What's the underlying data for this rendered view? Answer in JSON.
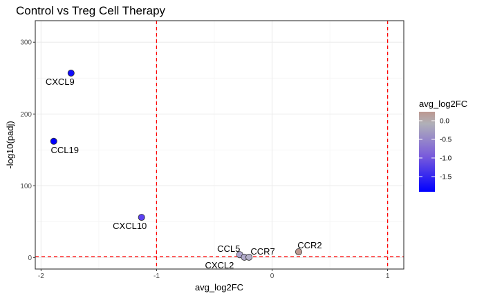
{
  "chart_data": {
    "type": "scatter",
    "title": "Control vs Treg Cell Therapy",
    "xlabel": "avg_log2FC",
    "ylabel": "-log10(padj)",
    "xlim": [
      -2.05,
      1.14
    ],
    "ylim": [
      -16,
      330
    ],
    "x_ticks": [
      -2,
      -1,
      0,
      1
    ],
    "x_tick_labels": [
      "-2",
      "-1",
      "0",
      "1"
    ],
    "y_ticks": [
      0,
      100,
      200,
      300
    ],
    "y_tick_labels": [
      "0",
      "100",
      "200",
      "300"
    ],
    "grid": true,
    "threshold_lines": {
      "vertical": [
        -1,
        1
      ],
      "horizontal": [
        1.3
      ],
      "color": "#ff0000",
      "style": "dashed"
    },
    "points": [
      {
        "label": "CXCL9",
        "x": -1.74,
        "y": 257
      },
      {
        "label": "CCL19",
        "x": -1.89,
        "y": 162
      },
      {
        "label": "CXCL10",
        "x": -1.13,
        "y": 56
      },
      {
        "label": "CCL5",
        "x": -0.28,
        "y": 4
      },
      {
        "label": "CXCL2",
        "x": -0.24,
        "y": 0.5
      },
      {
        "label": "CCR7",
        "x": -0.2,
        "y": 0.5
      },
      {
        "label": "CCR2",
        "x": 0.23,
        "y": 8
      }
    ],
    "color_scale": {
      "title": "avg_log2FC",
      "low": "#0000ff",
      "mid": "#b3b3b3",
      "high": "#bc8f8f",
      "range": [
        -1.89,
        0.23
      ],
      "ticks": [
        0.0,
        -0.5,
        -1.0,
        -1.5
      ],
      "tick_labels": [
        "0.0",
        "-0.5",
        "-1.0",
        "-1.5"
      ]
    },
    "legend_position": "right"
  }
}
